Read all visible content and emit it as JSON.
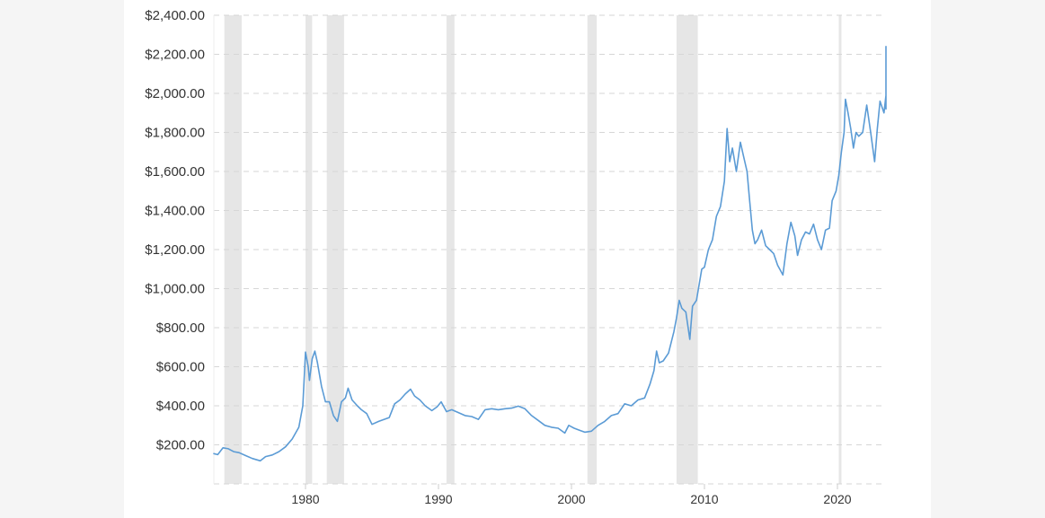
{
  "chart_data": {
    "type": "line",
    "title": "",
    "xlabel": "",
    "ylabel": "",
    "xlim": [
      1973,
      2023.2
    ],
    "ylim": [
      0,
      2400
    ],
    "y_ticks": [
      {
        "value": 200,
        "label": "$200.00"
      },
      {
        "value": 400,
        "label": "$400.00"
      },
      {
        "value": 600,
        "label": "$600.00"
      },
      {
        "value": 800,
        "label": "$800.00"
      },
      {
        "value": 1000,
        "label": "$1,000.00"
      },
      {
        "value": 1200,
        "label": "$1,200.00"
      },
      {
        "value": 1400,
        "label": "$1,400.00"
      },
      {
        "value": 1600,
        "label": "$1,600.00"
      },
      {
        "value": 1800,
        "label": "$1,800.00"
      },
      {
        "value": 2000,
        "label": "$2,000.00"
      },
      {
        "value": 2200,
        "label": "$2,200.00"
      },
      {
        "value": 2400,
        "label": "$2,400.00"
      }
    ],
    "x_ticks": [
      {
        "value": 1980,
        "label": "1980"
      },
      {
        "value": 1990,
        "label": "1990"
      },
      {
        "value": 2000,
        "label": "2000"
      },
      {
        "value": 2010,
        "label": "2010"
      },
      {
        "value": 2020,
        "label": "2020"
      }
    ],
    "grid": "horizontal dashed",
    "recessions": [
      [
        1973.9,
        1975.2
      ],
      [
        1980.0,
        1980.5
      ],
      [
        1981.6,
        1982.9
      ],
      [
        1990.6,
        1991.2
      ],
      [
        2001.2,
        2001.9
      ],
      [
        2007.9,
        2009.5
      ],
      [
        2020.1,
        2020.3
      ]
    ],
    "series": [
      {
        "color": "#5b9bd5",
        "points": [
          [
            1973.0,
            155
          ],
          [
            1973.4,
            150
          ],
          [
            1973.8,
            185
          ],
          [
            1974.2,
            180
          ],
          [
            1974.6,
            165
          ],
          [
            1975.0,
            160
          ],
          [
            1975.5,
            145
          ],
          [
            1976.0,
            130
          ],
          [
            1976.6,
            118
          ],
          [
            1977.0,
            140
          ],
          [
            1977.5,
            148
          ],
          [
            1978.0,
            165
          ],
          [
            1978.5,
            190
          ],
          [
            1979.0,
            230
          ],
          [
            1979.5,
            290
          ],
          [
            1979.8,
            400
          ],
          [
            1980.0,
            675
          ],
          [
            1980.2,
            600
          ],
          [
            1980.3,
            530
          ],
          [
            1980.5,
            640
          ],
          [
            1980.7,
            680
          ],
          [
            1980.9,
            620
          ],
          [
            1981.2,
            500
          ],
          [
            1981.5,
            420
          ],
          [
            1981.8,
            420
          ],
          [
            1982.1,
            350
          ],
          [
            1982.4,
            320
          ],
          [
            1982.7,
            420
          ],
          [
            1983.0,
            440
          ],
          [
            1983.2,
            490
          ],
          [
            1983.5,
            430
          ],
          [
            1983.9,
            400
          ],
          [
            1984.2,
            380
          ],
          [
            1984.6,
            360
          ],
          [
            1985.0,
            305
          ],
          [
            1985.5,
            320
          ],
          [
            1985.9,
            330
          ],
          [
            1986.3,
            340
          ],
          [
            1986.7,
            410
          ],
          [
            1987.1,
            430
          ],
          [
            1987.5,
            460
          ],
          [
            1987.9,
            485
          ],
          [
            1988.2,
            450
          ],
          [
            1988.6,
            430
          ],
          [
            1989.0,
            400
          ],
          [
            1989.5,
            375
          ],
          [
            1989.9,
            395
          ],
          [
            1990.2,
            420
          ],
          [
            1990.6,
            370
          ],
          [
            1991.0,
            380
          ],
          [
            1991.5,
            365
          ],
          [
            1992.0,
            350
          ],
          [
            1992.5,
            345
          ],
          [
            1993.0,
            330
          ],
          [
            1993.5,
            380
          ],
          [
            1994.0,
            385
          ],
          [
            1994.5,
            380
          ],
          [
            1995.0,
            385
          ],
          [
            1995.5,
            388
          ],
          [
            1996.0,
            398
          ],
          [
            1996.5,
            385
          ],
          [
            1997.0,
            350
          ],
          [
            1997.5,
            325
          ],
          [
            1998.0,
            300
          ],
          [
            1998.5,
            290
          ],
          [
            1999.0,
            285
          ],
          [
            1999.5,
            260
          ],
          [
            1999.8,
            300
          ],
          [
            2000.2,
            285
          ],
          [
            2000.6,
            275
          ],
          [
            2001.0,
            265
          ],
          [
            2001.5,
            270
          ],
          [
            2002.0,
            300
          ],
          [
            2002.5,
            320
          ],
          [
            2003.0,
            350
          ],
          [
            2003.5,
            360
          ],
          [
            2004.0,
            410
          ],
          [
            2004.5,
            400
          ],
          [
            2005.0,
            430
          ],
          [
            2005.5,
            440
          ],
          [
            2005.9,
            510
          ],
          [
            2006.2,
            580
          ],
          [
            2006.4,
            680
          ],
          [
            2006.6,
            620
          ],
          [
            2006.9,
            630
          ],
          [
            2007.3,
            670
          ],
          [
            2007.7,
            780
          ],
          [
            2007.9,
            850
          ],
          [
            2008.1,
            940
          ],
          [
            2008.3,
            900
          ],
          [
            2008.6,
            880
          ],
          [
            2008.9,
            740
          ],
          [
            2009.1,
            910
          ],
          [
            2009.4,
            940
          ],
          [
            2009.8,
            1100
          ],
          [
            2010.0,
            1110
          ],
          [
            2010.3,
            1200
          ],
          [
            2010.6,
            1250
          ],
          [
            2010.9,
            1370
          ],
          [
            2011.2,
            1420
          ],
          [
            2011.5,
            1550
          ],
          [
            2011.7,
            1820
          ],
          [
            2011.9,
            1650
          ],
          [
            2012.1,
            1720
          ],
          [
            2012.4,
            1600
          ],
          [
            2012.7,
            1750
          ],
          [
            2012.9,
            1690
          ],
          [
            2013.2,
            1600
          ],
          [
            2013.4,
            1450
          ],
          [
            2013.6,
            1300
          ],
          [
            2013.8,
            1230
          ],
          [
            2014.0,
            1250
          ],
          [
            2014.3,
            1300
          ],
          [
            2014.6,
            1220
          ],
          [
            2014.9,
            1200
          ],
          [
            2015.2,
            1180
          ],
          [
            2015.5,
            1120
          ],
          [
            2015.9,
            1070
          ],
          [
            2016.2,
            1230
          ],
          [
            2016.5,
            1340
          ],
          [
            2016.8,
            1270
          ],
          [
            2017.0,
            1170
          ],
          [
            2017.3,
            1250
          ],
          [
            2017.6,
            1290
          ],
          [
            2017.9,
            1280
          ],
          [
            2018.2,
            1330
          ],
          [
            2018.5,
            1250
          ],
          [
            2018.8,
            1200
          ],
          [
            2019.1,
            1300
          ],
          [
            2019.4,
            1310
          ],
          [
            2019.6,
            1450
          ],
          [
            2019.9,
            1500
          ],
          [
            2020.1,
            1580
          ],
          [
            2020.3,
            1700
          ],
          [
            2020.5,
            1800
          ],
          [
            2020.6,
            1970
          ],
          [
            2020.8,
            1900
          ],
          [
            2021.0,
            1820
          ],
          [
            2021.2,
            1720
          ],
          [
            2021.4,
            1800
          ],
          [
            2021.6,
            1780
          ],
          [
            2021.9,
            1800
          ],
          [
            2022.2,
            1940
          ],
          [
            2022.5,
            1800
          ],
          [
            2022.8,
            1650
          ],
          [
            2023.0,
            1820
          ],
          [
            2023.2,
            1960
          ],
          [
            2023.5,
            1900
          ],
          [
            2023.7,
            1990
          ],
          [
            2023.9,
            1920
          ],
          [
            2024.1,
            2050
          ],
          [
            2024.3,
            2060
          ],
          [
            2024.45,
            2240
          ]
        ]
      }
    ]
  }
}
